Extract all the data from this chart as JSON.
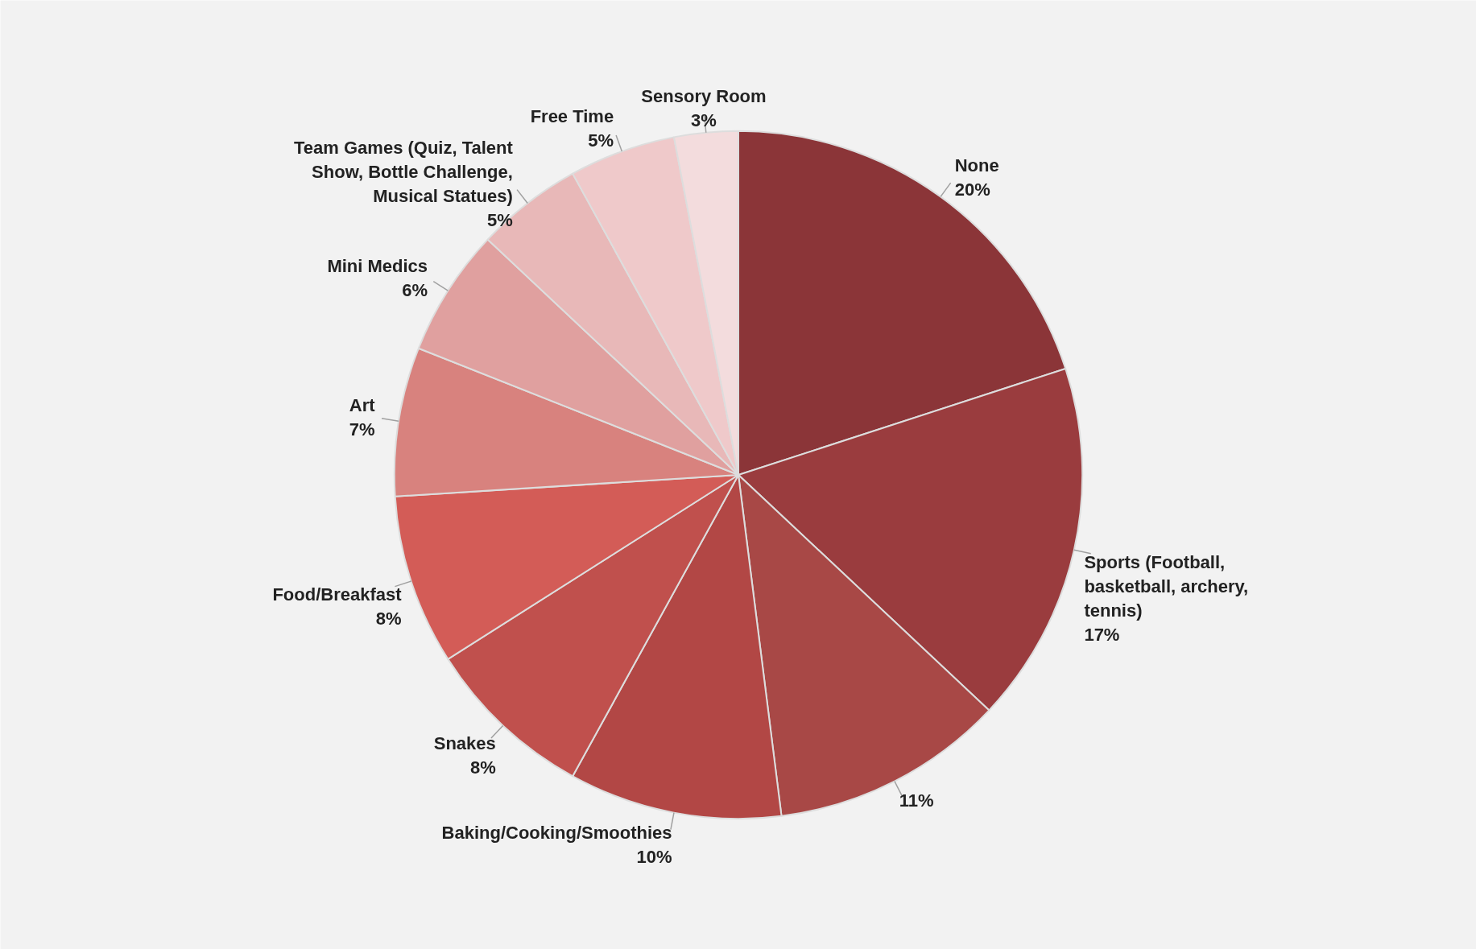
{
  "chart_data": {
    "type": "pie",
    "categories": [
      "None",
      "Sports (Football, basketball, archery, tennis)",
      null,
      "Baking/Cooking/Smoothies",
      "Snakes",
      "Food/Breakfast",
      "Art",
      "Mini Medics",
      "Team Games (Quiz, Talent Show, Bottle Challenge, Musical Statues)",
      "Free Time",
      "Sensory Room"
    ],
    "values": [
      20,
      17,
      11,
      10,
      8,
      8,
      7,
      6,
      5,
      5,
      3
    ],
    "value_labels": [
      "20%",
      "17%",
      "11%",
      "10%",
      "8%",
      "8%",
      "7%",
      "6%",
      "5%",
      "5%",
      "3%"
    ],
    "colors": [
      "#8b3538",
      "#9a3c3e",
      "#a84846",
      "#b24745",
      "#c0504d",
      "#d35c57",
      "#d8827e",
      "#e0a09f",
      "#e8b8b8",
      "#efc9ca",
      "#f3dcdd"
    ]
  }
}
